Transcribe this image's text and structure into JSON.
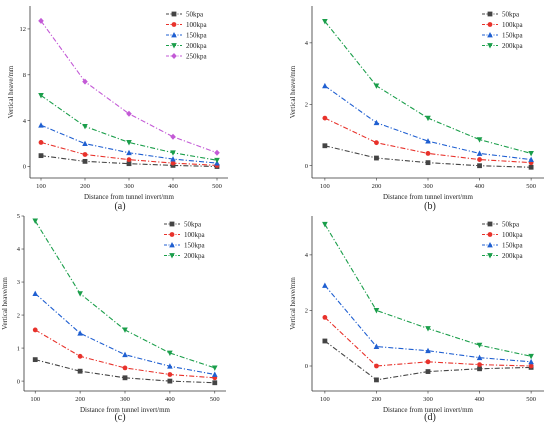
{
  "chart_data": [
    {
      "type": "line",
      "panel_label": "(a)",
      "xlabel": "Distance from tunnel invert/mm",
      "ylabel": "Vertical heave/mm",
      "x": [
        100,
        200,
        300,
        400,
        500
      ],
      "x_ticks": [
        "100",
        "200",
        "300",
        "400",
        "500"
      ],
      "xlim": [
        75,
        525
      ],
      "ylim": [
        -1,
        14
      ],
      "y_ticks": [
        0,
        4,
        8,
        12
      ],
      "legend_position": "top-right",
      "series": [
        {
          "name": "50kpa",
          "color": "#444444",
          "marker": "square",
          "dash": "dashdot",
          "values": [
            0.95,
            0.45,
            0.25,
            0.1,
            0.0
          ]
        },
        {
          "name": "100kpa",
          "color": "#e8322b",
          "marker": "circle",
          "dash": "dashdot",
          "values": [
            2.1,
            1.05,
            0.6,
            0.3,
            0.1
          ]
        },
        {
          "name": "150kpa",
          "color": "#1f5fd1",
          "marker": "triangle",
          "dash": "dashdot",
          "values": [
            3.6,
            2.0,
            1.2,
            0.65,
            0.3
          ]
        },
        {
          "name": "200kpa",
          "color": "#1a9e4a",
          "marker": "triangle-down",
          "dash": "dashdot",
          "values": [
            6.2,
            3.5,
            2.1,
            1.2,
            0.55
          ]
        },
        {
          "name": "250kpa",
          "color": "#c35ad6",
          "marker": "diamond",
          "dash": "dashdot",
          "values": [
            12.7,
            7.4,
            4.6,
            2.6,
            1.2
          ]
        }
      ]
    },
    {
      "type": "line",
      "panel_label": "(b)",
      "xlabel": "Distance from tunnel invert/mm",
      "ylabel": "Vertical heave/mm",
      "x": [
        100,
        200,
        300,
        400,
        500
      ],
      "x_ticks": [
        "100",
        "200",
        "300",
        "400",
        "500"
      ],
      "xlim": [
        75,
        525
      ],
      "ylim": [
        -0.4,
        5.2
      ],
      "y_ticks": [
        0,
        2,
        4
      ],
      "legend_position": "top-right",
      "series": [
        {
          "name": "50kpa",
          "color": "#444444",
          "marker": "square",
          "dash": "dashdot",
          "values": [
            0.65,
            0.25,
            0.1,
            0.0,
            -0.05
          ]
        },
        {
          "name": "100kpa",
          "color": "#e8322b",
          "marker": "circle",
          "dash": "dashdot",
          "values": [
            1.55,
            0.75,
            0.4,
            0.2,
            0.1
          ]
        },
        {
          "name": "150kpa",
          "color": "#1f5fd1",
          "marker": "triangle",
          "dash": "dashdot",
          "values": [
            2.6,
            1.4,
            0.8,
            0.4,
            0.2
          ]
        },
        {
          "name": "200kpa",
          "color": "#1a9e4a",
          "marker": "triangle-down",
          "dash": "dashdot",
          "values": [
            4.7,
            2.6,
            1.55,
            0.85,
            0.4
          ]
        }
      ]
    },
    {
      "type": "line",
      "panel_label": "(c)",
      "xlabel": "Distance from tunnel invert/mm",
      "ylabel": "Vertical heave/mm",
      "x": [
        100,
        200,
        300,
        400,
        500
      ],
      "x_ticks": [
        "100",
        "200",
        "300",
        "400",
        "500"
      ],
      "xlim": [
        75,
        525
      ],
      "ylim": [
        -0.3,
        5.0
      ],
      "y_ticks": [
        0,
        1,
        2,
        3,
        4,
        5
      ],
      "legend_position": "top-right",
      "series": [
        {
          "name": "50kpa",
          "color": "#444444",
          "marker": "square",
          "dash": "dashdot",
          "values": [
            0.65,
            0.3,
            0.1,
            0.0,
            -0.05
          ]
        },
        {
          "name": "100kpa",
          "color": "#e8322b",
          "marker": "circle",
          "dash": "dashdot",
          "values": [
            1.55,
            0.75,
            0.4,
            0.2,
            0.1
          ]
        },
        {
          "name": "150kpa",
          "color": "#1f5fd1",
          "marker": "triangle",
          "dash": "dashdot",
          "values": [
            2.65,
            1.45,
            0.8,
            0.45,
            0.2
          ]
        },
        {
          "name": "200kpa",
          "color": "#1a9e4a",
          "marker": "triangle-down",
          "dash": "dashdot",
          "values": [
            4.85,
            2.65,
            1.55,
            0.85,
            0.4
          ]
        }
      ]
    },
    {
      "type": "line",
      "panel_label": "(d)",
      "xlabel": "Distance from tunnel invert/mm",
      "ylabel": "Vertical heave/mm",
      "x": [
        100,
        200,
        300,
        400,
        500
      ],
      "x_ticks": [
        "100",
        "200",
        "300",
        "400",
        "500"
      ],
      "xlim": [
        75,
        525
      ],
      "ylim": [
        -0.9,
        5.4
      ],
      "y_ticks": [
        0,
        2,
        4
      ],
      "legend_position": "top-right",
      "series": [
        {
          "name": "50kpa",
          "color": "#444444",
          "marker": "square",
          "dash": "dashdot",
          "values": [
            0.9,
            -0.5,
            -0.2,
            -0.1,
            -0.05
          ]
        },
        {
          "name": "100kpa",
          "color": "#e8322b",
          "marker": "circle",
          "dash": "dashdot",
          "values": [
            1.75,
            0.0,
            0.15,
            0.05,
            0.0
          ]
        },
        {
          "name": "150kpa",
          "color": "#1f5fd1",
          "marker": "triangle",
          "dash": "dashdot",
          "values": [
            2.9,
            0.7,
            0.55,
            0.3,
            0.15
          ]
        },
        {
          "name": "200kpa",
          "color": "#1a9e4a",
          "marker": "triangle-down",
          "dash": "dashdot",
          "values": [
            5.1,
            2.0,
            1.35,
            0.75,
            0.35
          ]
        }
      ]
    }
  ]
}
